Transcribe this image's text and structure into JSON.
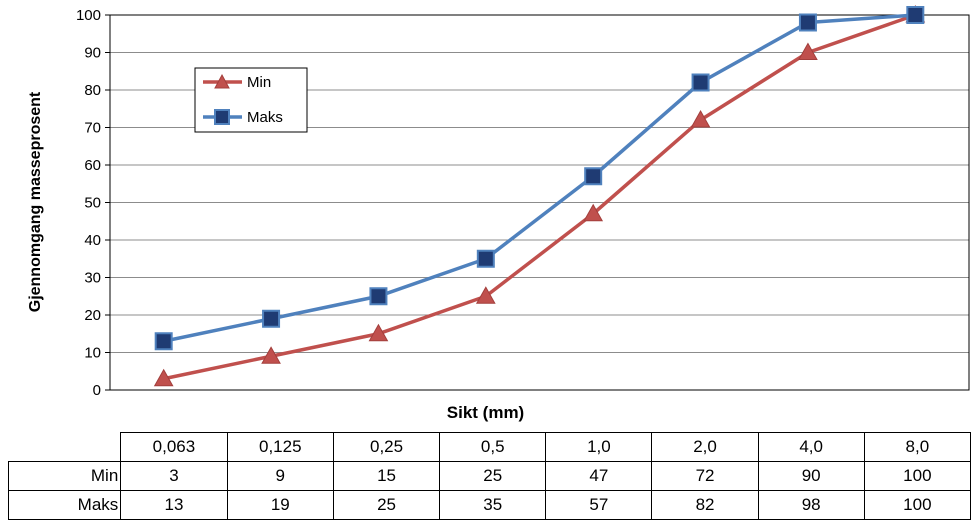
{
  "chart_data": {
    "type": "line",
    "xlabel": "Sikt (mm)",
    "ylabel": "Gjennomgang masseprosent",
    "categories": [
      "0,063",
      "0,125",
      "0,25",
      "0,5",
      "1,0",
      "2,0",
      "4,0",
      "8,0"
    ],
    "ylim": [
      0,
      100
    ],
    "yticks": [
      0,
      10,
      20,
      30,
      40,
      50,
      60,
      70,
      80,
      90,
      100
    ],
    "grid": true,
    "legend_position": "top-left",
    "series": [
      {
        "name": "Min",
        "values": [
          3,
          9,
          15,
          25,
          47,
          72,
          90,
          100
        ],
        "color": "#C0504D",
        "marker": "triangle"
      },
      {
        "name": "Maks",
        "values": [
          13,
          19,
          25,
          35,
          57,
          82,
          98,
          100
        ],
        "color": "#4F81BD",
        "marker": "square",
        "marker_fill": "#1F3B73"
      }
    ]
  },
  "table": {
    "rows": [
      {
        "label": "Min",
        "values": [
          "3",
          "9",
          "15",
          "25",
          "47",
          "72",
          "90",
          "100"
        ]
      },
      {
        "label": "Maks",
        "values": [
          "13",
          "19",
          "25",
          "35",
          "57",
          "82",
          "98",
          "100"
        ]
      }
    ]
  }
}
